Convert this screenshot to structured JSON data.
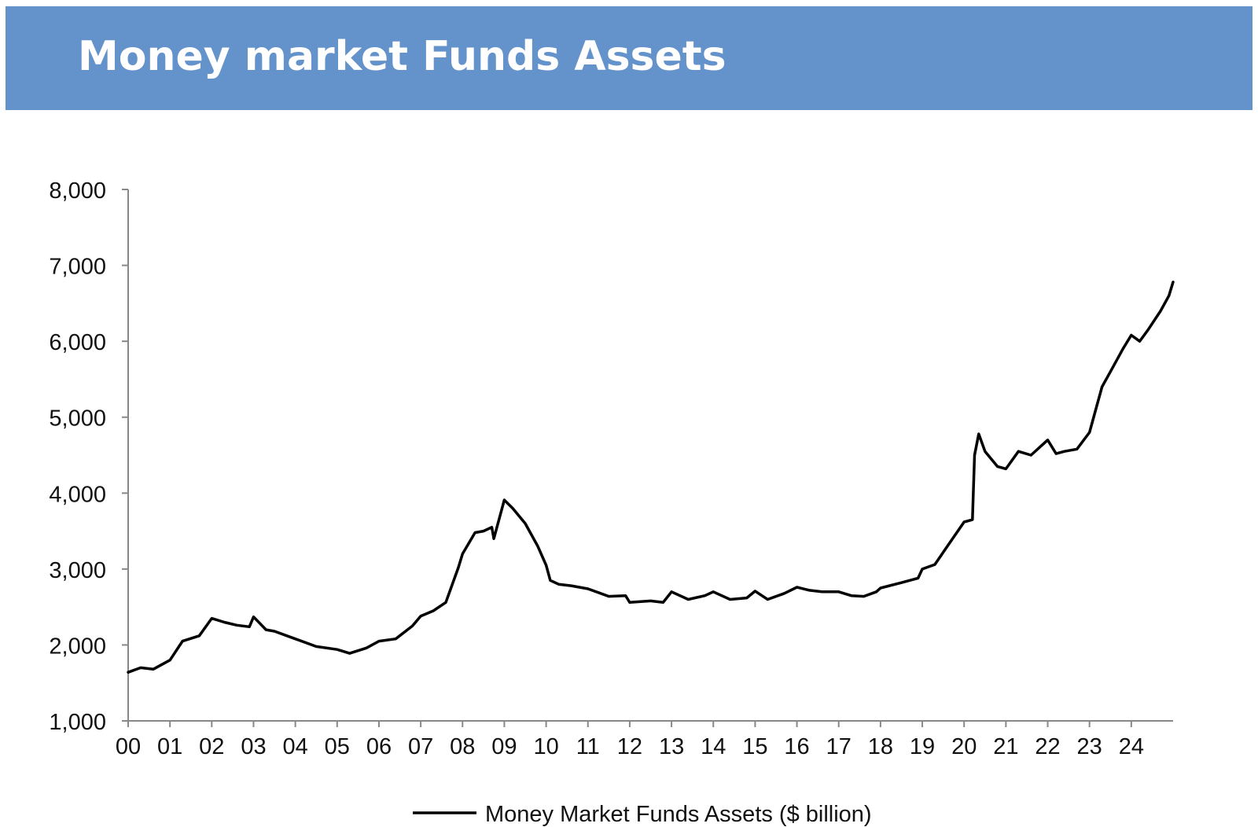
{
  "banner": {
    "title": "Money market Funds Assets",
    "background_color": "#6492CA",
    "text_color": "#FFFFFF"
  },
  "chart_data": {
    "type": "line",
    "title": "",
    "xlabel": "",
    "ylabel": "",
    "ylim": [
      1000,
      8000
    ],
    "yticks": [
      1000,
      2000,
      3000,
      4000,
      5000,
      6000,
      7000,
      8000
    ],
    "ytick_labels": [
      "1,000",
      "2,000",
      "3,000",
      "4,000",
      "5,000",
      "6,000",
      "7,000",
      "8,000"
    ],
    "xlim": [
      2000,
      2025
    ],
    "xticks": [
      2000,
      2001,
      2002,
      2003,
      2004,
      2005,
      2006,
      2007,
      2008,
      2009,
      2010,
      2011,
      2012,
      2013,
      2014,
      2015,
      2016,
      2017,
      2018,
      2019,
      2020,
      2021,
      2022,
      2023,
      2024
    ],
    "xtick_labels": [
      "00",
      "01",
      "02",
      "03",
      "04",
      "05",
      "06",
      "07",
      "08",
      "09",
      "10",
      "11",
      "12",
      "13",
      "14",
      "15",
      "16",
      "17",
      "18",
      "19",
      "20",
      "21",
      "22",
      "23",
      "24"
    ],
    "grid": false,
    "legend_position": "bottom-center",
    "series": [
      {
        "name": "Money Market Funds Assets ($ billion)",
        "color": "#000000",
        "x": [
          2000.0,
          2000.3,
          2000.6,
          2001.0,
          2001.3,
          2001.7,
          2002.0,
          2002.3,
          2002.6,
          2002.9,
          2003.0,
          2003.3,
          2003.5,
          2004.0,
          2004.5,
          2005.0,
          2005.3,
          2005.7,
          2006.0,
          2006.4,
          2006.8,
          2007.0,
          2007.3,
          2007.6,
          2007.9,
          2008.0,
          2008.3,
          2008.5,
          2008.7,
          2008.75,
          2009.0,
          2009.2,
          2009.5,
          2009.8,
          2010.0,
          2010.1,
          2010.3,
          2010.6,
          2011.0,
          2011.5,
          2011.9,
          2012.0,
          2012.5,
          2012.8,
          2013.0,
          2013.4,
          2013.8,
          2014.0,
          2014.4,
          2014.8,
          2015.0,
          2015.3,
          2015.7,
          2016.0,
          2016.3,
          2016.6,
          2017.0,
          2017.3,
          2017.6,
          2017.9,
          2018.0,
          2018.5,
          2018.9,
          2019.0,
          2019.3,
          2019.6,
          2020.0,
          2020.2,
          2020.25,
          2020.35,
          2020.5,
          2020.8,
          2021.0,
          2021.3,
          2021.6,
          2022.0,
          2022.2,
          2022.4,
          2022.7,
          2023.0,
          2023.2,
          2023.3,
          2023.5,
          2023.8,
          2024.0,
          2024.2,
          2024.4,
          2024.7,
          2024.9,
          2025.0
        ],
        "y": [
          1640,
          1700,
          1680,
          1800,
          2050,
          2120,
          2350,
          2300,
          2260,
          2240,
          2370,
          2200,
          2180,
          2080,
          1980,
          1940,
          1890,
          1960,
          2050,
          2080,
          2250,
          2380,
          2450,
          2560,
          3020,
          3200,
          3480,
          3500,
          3550,
          3400,
          3910,
          3800,
          3600,
          3300,
          3050,
          2850,
          2800,
          2780,
          2740,
          2640,
          2650,
          2560,
          2580,
          2560,
          2700,
          2600,
          2650,
          2700,
          2600,
          2620,
          2710,
          2600,
          2680,
          2760,
          2720,
          2700,
          2700,
          2650,
          2640,
          2700,
          2750,
          2820,
          2880,
          3000,
          3060,
          3300,
          3620,
          3650,
          4500,
          4780,
          4550,
          4350,
          4320,
          4550,
          4500,
          4700,
          4520,
          4550,
          4580,
          4800,
          5200,
          5400,
          5600,
          5900,
          6080,
          6000,
          6150,
          6400,
          6600,
          6780
        ]
      }
    ]
  }
}
